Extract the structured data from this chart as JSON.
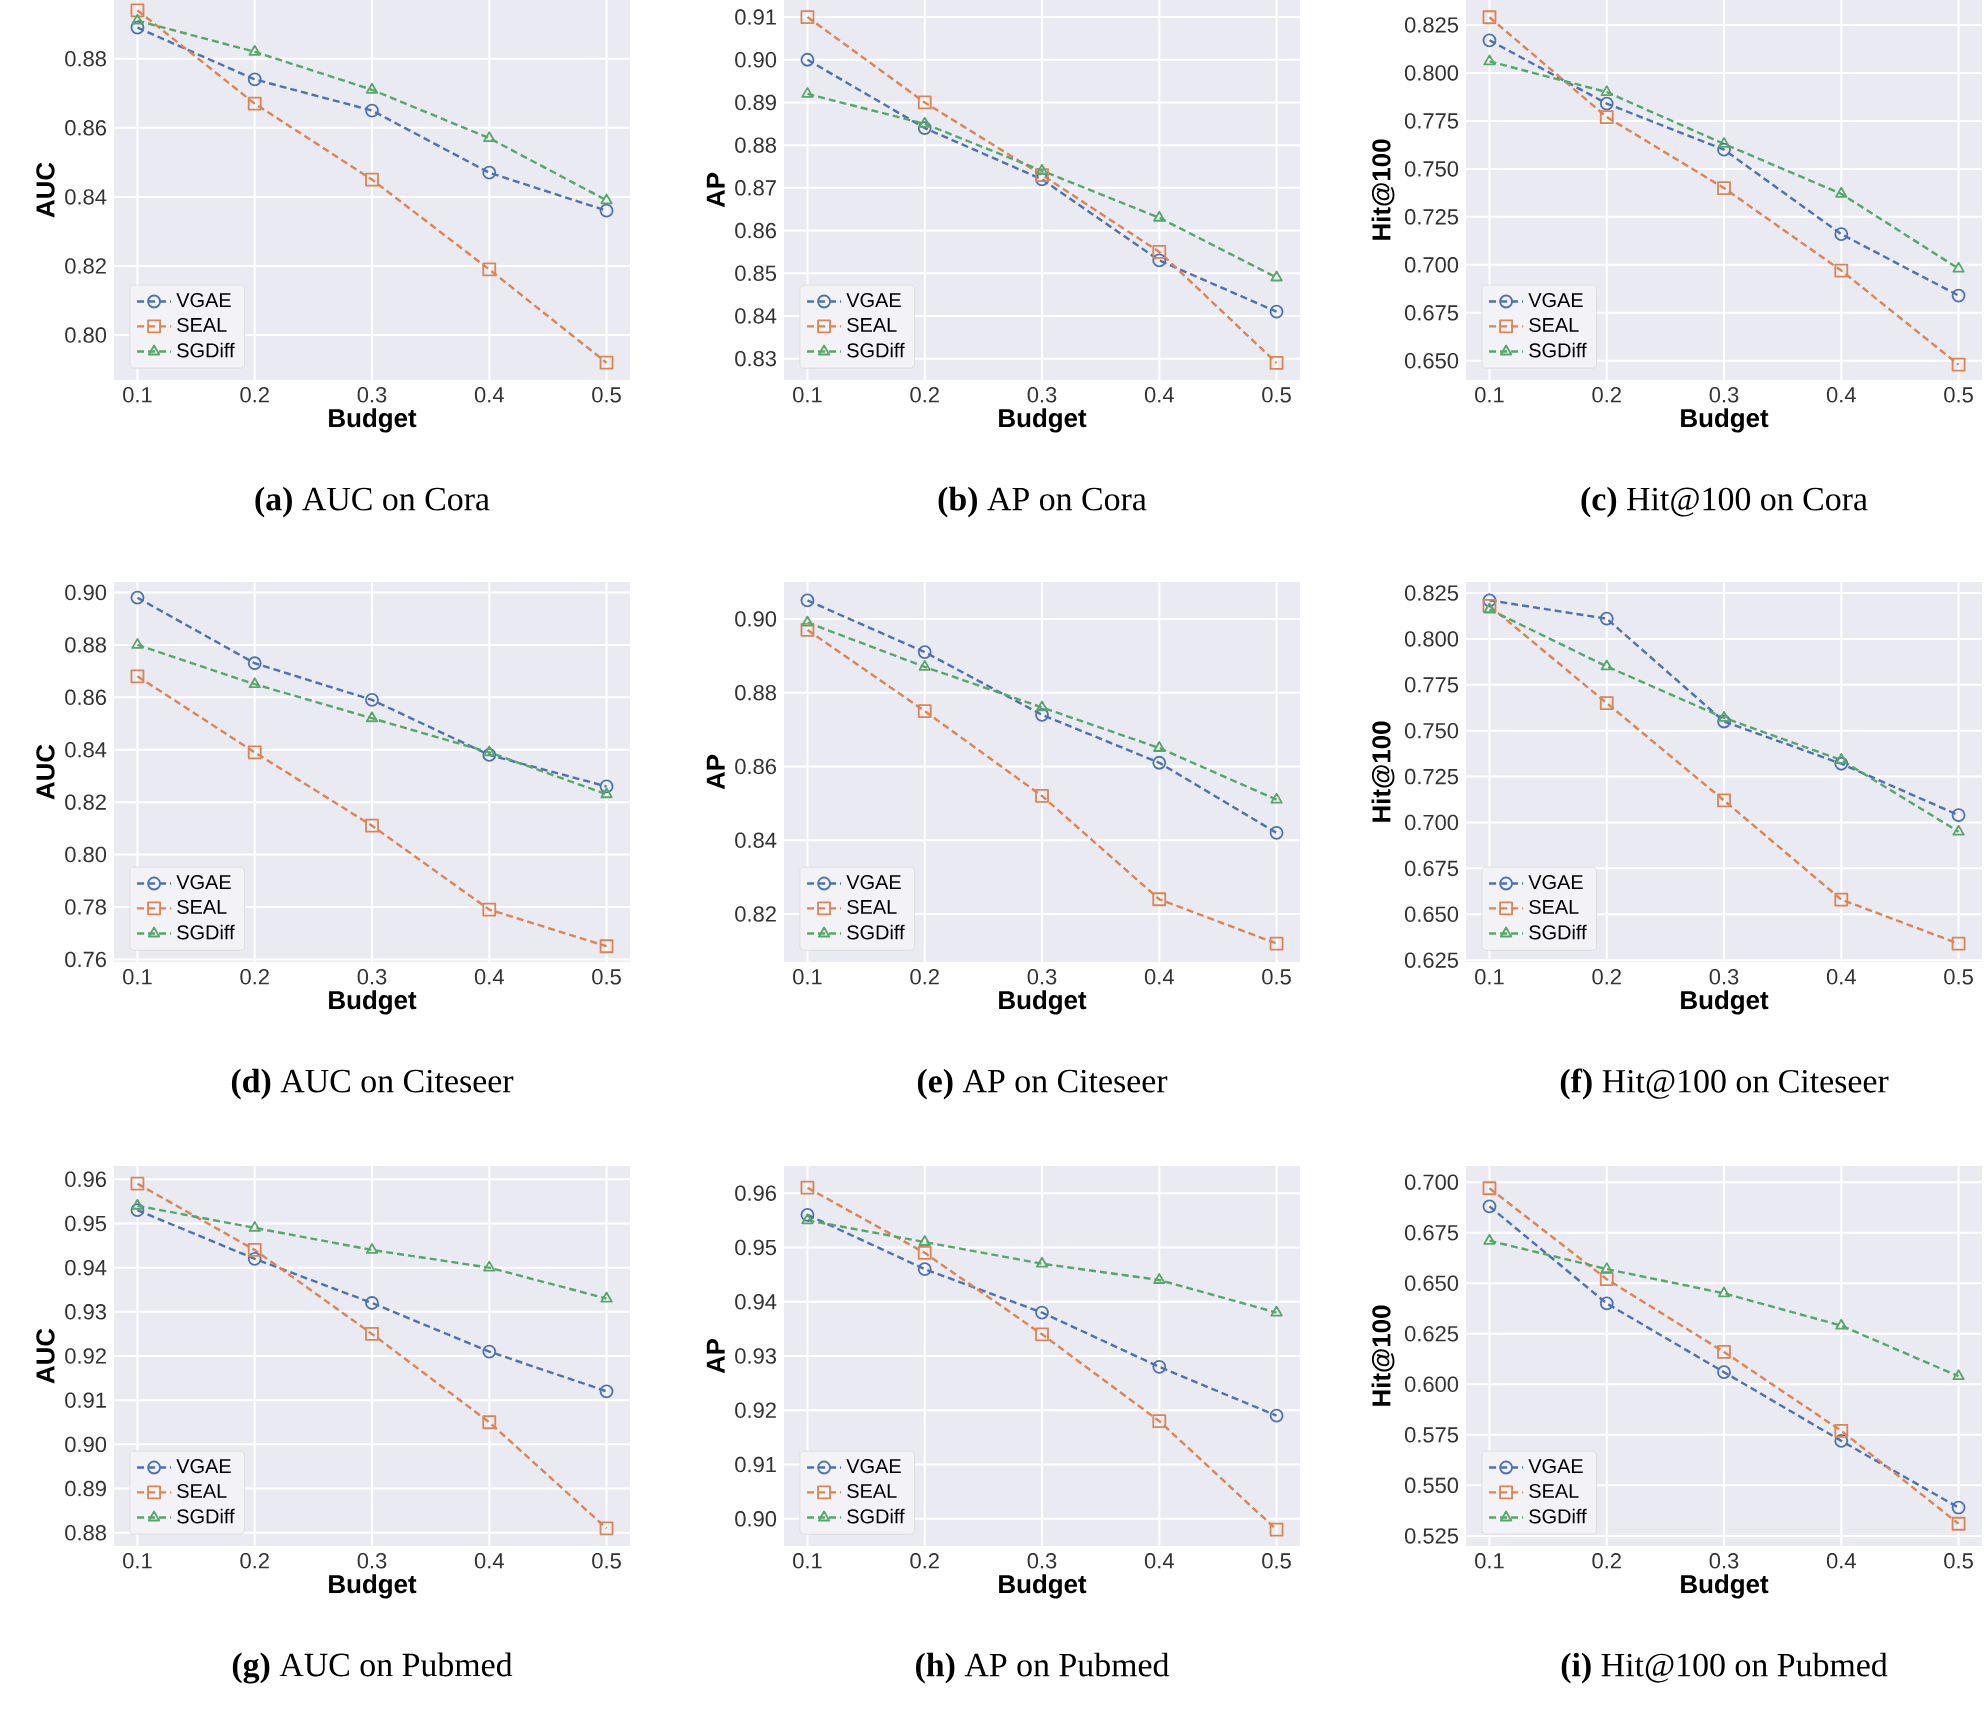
{
  "chart_data": [
    {
      "type": "line",
      "title": "**(a)** AUC on Cora",
      "xlabel": "Budget",
      "ylabel": "AUC",
      "x": [
        0.1,
        0.2,
        0.3,
        0.4,
        0.5
      ],
      "xlim": [
        0.08,
        0.52
      ],
      "xticks": [
        0.1,
        0.2,
        0.3,
        0.4,
        0.5
      ],
      "ylim": [
        0.787,
        0.897
      ],
      "yticks": [
        {
          "value": 0.8,
          "label": "0.80"
        },
        {
          "value": 0.82,
          "label": "0.82"
        },
        {
          "value": 0.84,
          "label": "0.84"
        },
        {
          "value": 0.86,
          "label": "0.86"
        },
        {
          "value": 0.88,
          "label": "0.88"
        }
      ],
      "grid": true,
      "legend": "bottom left",
      "line_style": "dashed",
      "series": [
        {
          "name": "VGAE",
          "color": "#4c72b0",
          "marker": "circle",
          "values": [
            0.889,
            0.874,
            0.865,
            0.847,
            0.836
          ]
        },
        {
          "name": "SEAL",
          "color": "#dd8452",
          "marker": "square",
          "values": [
            0.894,
            0.867,
            0.845,
            0.819,
            0.792
          ]
        },
        {
          "name": "SGDiff",
          "color": "#55a868",
          "marker": "triangle",
          "values": [
            0.891,
            0.882,
            0.871,
            0.857,
            0.839
          ]
        }
      ]
    },
    {
      "type": "line",
      "title": "**(b)** AP on Cora",
      "xlabel": "Budget",
      "ylabel": "AP",
      "x": [
        0.1,
        0.2,
        0.3,
        0.4,
        0.5
      ],
      "xlim": [
        0.08,
        0.52
      ],
      "xticks": [
        0.1,
        0.2,
        0.3,
        0.4,
        0.5
      ],
      "ylim": [
        0.825,
        0.914
      ],
      "yticks": [
        {
          "value": 0.83,
          "label": "0.83"
        },
        {
          "value": 0.84,
          "label": "0.84"
        },
        {
          "value": 0.85,
          "label": "0.85"
        },
        {
          "value": 0.86,
          "label": "0.86"
        },
        {
          "value": 0.87,
          "label": "0.87"
        },
        {
          "value": 0.88,
          "label": "0.88"
        },
        {
          "value": 0.89,
          "label": "0.89"
        },
        {
          "value": 0.9,
          "label": "0.90"
        },
        {
          "value": 0.91,
          "label": "0.91"
        }
      ],
      "grid": true,
      "legend": "bottom left",
      "line_style": "dashed",
      "series": [
        {
          "name": "VGAE",
          "color": "#4c72b0",
          "marker": "circle",
          "values": [
            0.9,
            0.884,
            0.872,
            0.853,
            0.841
          ]
        },
        {
          "name": "SEAL",
          "color": "#dd8452",
          "marker": "square",
          "values": [
            0.91,
            0.89,
            0.873,
            0.855,
            0.829
          ]
        },
        {
          "name": "SGDiff",
          "color": "#55a868",
          "marker": "triangle",
          "values": [
            0.892,
            0.885,
            0.874,
            0.863,
            0.849
          ]
        }
      ]
    },
    {
      "type": "line",
      "title": "**(c)** Hit@100 on Cora",
      "xlabel": "Budget",
      "ylabel": "Hit@100",
      "x": [
        0.1,
        0.2,
        0.3,
        0.4,
        0.5
      ],
      "xlim": [
        0.08,
        0.52
      ],
      "xticks": [
        0.1,
        0.2,
        0.3,
        0.4,
        0.5
      ],
      "ylim": [
        0.64,
        0.838
      ],
      "yticks": [
        {
          "value": 0.65,
          "label": "0.650"
        },
        {
          "value": 0.675,
          "label": "0.675"
        },
        {
          "value": 0.7,
          "label": "0.700"
        },
        {
          "value": 0.725,
          "label": "0.725"
        },
        {
          "value": 0.75,
          "label": "0.750"
        },
        {
          "value": 0.775,
          "label": "0.775"
        },
        {
          "value": 0.8,
          "label": "0.800"
        },
        {
          "value": 0.825,
          "label": "0.825"
        }
      ],
      "grid": true,
      "legend": "bottom left",
      "line_style": "dashed",
      "series": [
        {
          "name": "VGAE",
          "color": "#4c72b0",
          "marker": "circle",
          "values": [
            0.817,
            0.784,
            0.76,
            0.716,
            0.684
          ]
        },
        {
          "name": "SEAL",
          "color": "#dd8452",
          "marker": "square",
          "values": [
            0.829,
            0.777,
            0.74,
            0.697,
            0.648
          ]
        },
        {
          "name": "SGDiff",
          "color": "#55a868",
          "marker": "triangle",
          "values": [
            0.806,
            0.79,
            0.763,
            0.737,
            0.698
          ]
        }
      ]
    },
    {
      "type": "line",
      "title": "**(d)** AUC on Citeseer",
      "xlabel": "Budget",
      "ylabel": "AUC",
      "x": [
        0.1,
        0.2,
        0.3,
        0.4,
        0.5
      ],
      "xlim": [
        0.08,
        0.52
      ],
      "xticks": [
        0.1,
        0.2,
        0.3,
        0.4,
        0.5
      ],
      "ylim": [
        0.759,
        0.904
      ],
      "yticks": [
        {
          "value": 0.76,
          "label": "0.76"
        },
        {
          "value": 0.78,
          "label": "0.78"
        },
        {
          "value": 0.8,
          "label": "0.80"
        },
        {
          "value": 0.82,
          "label": "0.82"
        },
        {
          "value": 0.84,
          "label": "0.84"
        },
        {
          "value": 0.86,
          "label": "0.86"
        },
        {
          "value": 0.88,
          "label": "0.88"
        },
        {
          "value": 0.9,
          "label": "0.90"
        }
      ],
      "grid": true,
      "legend": "bottom left",
      "line_style": "dashed",
      "series": [
        {
          "name": "VGAE",
          "color": "#4c72b0",
          "marker": "circle",
          "values": [
            0.898,
            0.873,
            0.859,
            0.838,
            0.826
          ]
        },
        {
          "name": "SEAL",
          "color": "#dd8452",
          "marker": "square",
          "values": [
            0.868,
            0.839,
            0.811,
            0.779,
            0.765
          ]
        },
        {
          "name": "SGDiff",
          "color": "#55a868",
          "marker": "triangle",
          "values": [
            0.88,
            0.865,
            0.852,
            0.839,
            0.823
          ]
        }
      ]
    },
    {
      "type": "line",
      "title": "**(e)** AP on Citeseer",
      "xlabel": "Budget",
      "ylabel": "AP",
      "x": [
        0.1,
        0.2,
        0.3,
        0.4,
        0.5
      ],
      "xlim": [
        0.08,
        0.52
      ],
      "xticks": [
        0.1,
        0.2,
        0.3,
        0.4,
        0.5
      ],
      "ylim": [
        0.807,
        0.91
      ],
      "yticks": [
        {
          "value": 0.82,
          "label": "0.82"
        },
        {
          "value": 0.84,
          "label": "0.84"
        },
        {
          "value": 0.86,
          "label": "0.86"
        },
        {
          "value": 0.88,
          "label": "0.88"
        },
        {
          "value": 0.9,
          "label": "0.90"
        }
      ],
      "grid": true,
      "legend": "bottom left",
      "line_style": "dashed",
      "series": [
        {
          "name": "VGAE",
          "color": "#4c72b0",
          "marker": "circle",
          "values": [
            0.905,
            0.891,
            0.874,
            0.861,
            0.842
          ]
        },
        {
          "name": "SEAL",
          "color": "#dd8452",
          "marker": "square",
          "values": [
            0.897,
            0.875,
            0.852,
            0.824,
            0.812
          ]
        },
        {
          "name": "SGDiff",
          "color": "#55a868",
          "marker": "triangle",
          "values": [
            0.899,
            0.887,
            0.876,
            0.865,
            0.851
          ]
        }
      ]
    },
    {
      "type": "line",
      "title": "**(f)** Hit@100 on Citeseer",
      "xlabel": "Budget",
      "ylabel": "Hit@100",
      "x": [
        0.1,
        0.2,
        0.3,
        0.4,
        0.5
      ],
      "xlim": [
        0.08,
        0.52
      ],
      "xticks": [
        0.1,
        0.2,
        0.3,
        0.4,
        0.5
      ],
      "ylim": [
        0.624,
        0.831
      ],
      "yticks": [
        {
          "value": 0.625,
          "label": "0.625"
        },
        {
          "value": 0.65,
          "label": "0.650"
        },
        {
          "value": 0.675,
          "label": "0.675"
        },
        {
          "value": 0.7,
          "label": "0.700"
        },
        {
          "value": 0.725,
          "label": "0.725"
        },
        {
          "value": 0.75,
          "label": "0.750"
        },
        {
          "value": 0.775,
          "label": "0.775"
        },
        {
          "value": 0.8,
          "label": "0.800"
        },
        {
          "value": 0.825,
          "label": "0.825"
        }
      ],
      "grid": true,
      "legend": "bottom left",
      "line_style": "dashed",
      "series": [
        {
          "name": "VGAE",
          "color": "#4c72b0",
          "marker": "circle",
          "values": [
            0.821,
            0.811,
            0.755,
            0.732,
            0.704
          ]
        },
        {
          "name": "SEAL",
          "color": "#dd8452",
          "marker": "square",
          "values": [
            0.818,
            0.765,
            0.712,
            0.658,
            0.634
          ]
        },
        {
          "name": "SGDiff",
          "color": "#55a868",
          "marker": "triangle",
          "values": [
            0.816,
            0.785,
            0.757,
            0.734,
            0.695
          ]
        }
      ]
    },
    {
      "type": "line",
      "title": "**(g)** AUC on Pubmed",
      "xlabel": "Budget",
      "ylabel": "AUC",
      "x": [
        0.1,
        0.2,
        0.3,
        0.4,
        0.5
      ],
      "xlim": [
        0.08,
        0.52
      ],
      "xticks": [
        0.1,
        0.2,
        0.3,
        0.4,
        0.5
      ],
      "ylim": [
        0.877,
        0.963
      ],
      "yticks": [
        {
          "value": 0.88,
          "label": "0.88"
        },
        {
          "value": 0.89,
          "label": "0.89"
        },
        {
          "value": 0.9,
          "label": "0.90"
        },
        {
          "value": 0.91,
          "label": "0.91"
        },
        {
          "value": 0.92,
          "label": "0.92"
        },
        {
          "value": 0.93,
          "label": "0.93"
        },
        {
          "value": 0.94,
          "label": "0.94"
        },
        {
          "value": 0.95,
          "label": "0.95"
        },
        {
          "value": 0.96,
          "label": "0.96"
        }
      ],
      "grid": true,
      "legend": "bottom left",
      "line_style": "dashed",
      "series": [
        {
          "name": "VGAE",
          "color": "#4c72b0",
          "marker": "circle",
          "values": [
            0.953,
            0.942,
            0.932,
            0.921,
            0.912
          ]
        },
        {
          "name": "SEAL",
          "color": "#dd8452",
          "marker": "square",
          "values": [
            0.959,
            0.944,
            0.925,
            0.905,
            0.881
          ]
        },
        {
          "name": "SGDiff",
          "color": "#55a868",
          "marker": "triangle",
          "values": [
            0.954,
            0.949,
            0.944,
            0.94,
            0.933
          ]
        }
      ]
    },
    {
      "type": "line",
      "title": "**(h)** AP on Pubmed",
      "xlabel": "Budget",
      "ylabel": "AP",
      "x": [
        0.1,
        0.2,
        0.3,
        0.4,
        0.5
      ],
      "xlim": [
        0.08,
        0.52
      ],
      "xticks": [
        0.1,
        0.2,
        0.3,
        0.4,
        0.5
      ],
      "ylim": [
        0.895,
        0.965
      ],
      "yticks": [
        {
          "value": 0.9,
          "label": "0.90"
        },
        {
          "value": 0.91,
          "label": "0.91"
        },
        {
          "value": 0.92,
          "label": "0.92"
        },
        {
          "value": 0.93,
          "label": "0.93"
        },
        {
          "value": 0.94,
          "label": "0.94"
        },
        {
          "value": 0.95,
          "label": "0.95"
        },
        {
          "value": 0.96,
          "label": "0.96"
        }
      ],
      "grid": true,
      "legend": "bottom left",
      "line_style": "dashed",
      "series": [
        {
          "name": "VGAE",
          "color": "#4c72b0",
          "marker": "circle",
          "values": [
            0.956,
            0.946,
            0.938,
            0.928,
            0.919
          ]
        },
        {
          "name": "SEAL",
          "color": "#dd8452",
          "marker": "square",
          "values": [
            0.961,
            0.949,
            0.934,
            0.918,
            0.898
          ]
        },
        {
          "name": "SGDiff",
          "color": "#55a868",
          "marker": "triangle",
          "values": [
            0.955,
            0.951,
            0.947,
            0.944,
            0.938
          ]
        }
      ]
    },
    {
      "type": "line",
      "title": "**(i)** Hit@100 on Pubmed",
      "xlabel": "Budget",
      "ylabel": "Hit@100",
      "x": [
        0.1,
        0.2,
        0.3,
        0.4,
        0.5
      ],
      "xlim": [
        0.08,
        0.52
      ],
      "xticks": [
        0.1,
        0.2,
        0.3,
        0.4,
        0.5
      ],
      "ylim": [
        0.52,
        0.708
      ],
      "yticks": [
        {
          "value": 0.525,
          "label": "0.525"
        },
        {
          "value": 0.55,
          "label": "0.550"
        },
        {
          "value": 0.575,
          "label": "0.575"
        },
        {
          "value": 0.6,
          "label": "0.600"
        },
        {
          "value": 0.625,
          "label": "0.625"
        },
        {
          "value": 0.65,
          "label": "0.650"
        },
        {
          "value": 0.675,
          "label": "0.675"
        },
        {
          "value": 0.7,
          "label": "0.700"
        }
      ],
      "grid": true,
      "legend": "bottom left",
      "line_style": "dashed",
      "series": [
        {
          "name": "VGAE",
          "color": "#4c72b0",
          "marker": "circle",
          "values": [
            0.688,
            0.64,
            0.606,
            0.572,
            0.539
          ]
        },
        {
          "name": "SEAL",
          "color": "#dd8452",
          "marker": "square",
          "values": [
            0.697,
            0.652,
            0.616,
            0.577,
            0.531
          ]
        },
        {
          "name": "SGDiff",
          "color": "#55a868",
          "marker": "triangle",
          "values": [
            0.671,
            0.657,
            0.645,
            0.629,
            0.604
          ]
        }
      ]
    }
  ]
}
